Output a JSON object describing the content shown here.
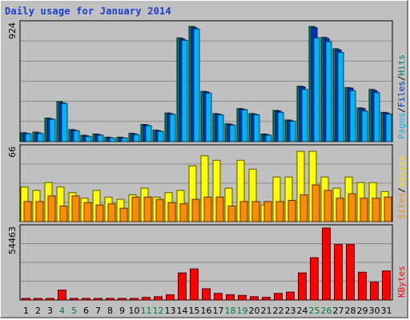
{
  "title": "Daily usage for January 2014",
  "panels": {
    "top": {
      "max_label": "924",
      "legend": [
        {
          "text": "Pages",
          "color": "#00b4ff"
        },
        {
          "text": "Files",
          "color": "#0030c0"
        },
        {
          "text": "Hits",
          "color": "#008060"
        }
      ]
    },
    "middle": {
      "max_label": "66",
      "legend": [
        {
          "text": "Sites",
          "color": "#ff8c00"
        },
        {
          "text": "Visits",
          "color": "#ffe000"
        }
      ]
    },
    "bottom": {
      "max_label": "54463",
      "legend": [
        {
          "text": "KBytes",
          "color": "#ff0000"
        }
      ]
    }
  },
  "colors": {
    "hits": "#008060",
    "files": "#0030c0",
    "pages": "#00b4ff",
    "visits": "#ffff00",
    "sites": "#ff8c00",
    "kbytes": "#ff0000",
    "weekday_label": "#000000",
    "weekend_label": "#007b39"
  },
  "chart_data": {
    "type": "bar",
    "categories": [
      "1",
      "2",
      "3",
      "4",
      "5",
      "6",
      "7",
      "8",
      "9",
      "10",
      "11",
      "12",
      "13",
      "14",
      "15",
      "16",
      "17",
      "18",
      "19",
      "20",
      "21",
      "22",
      "23",
      "24",
      "25",
      "26",
      "27",
      "28",
      "29",
      "30",
      "31"
    ],
    "weekend_days": [
      "4",
      "5",
      "11",
      "12",
      "18",
      "19",
      "25",
      "26"
    ],
    "panels": [
      {
        "name": "top",
        "ylim": [
          0,
          924
        ],
        "series": [
          {
            "name": "Hits",
            "values": [
              70,
              75,
              185,
              315,
              95,
              50,
              60,
              35,
              35,
              65,
              135,
              90,
              225,
              815,
              905,
              395,
              220,
              140,
              260,
              220,
              60,
              245,
              170,
              435,
              905,
              820,
              730,
              425,
              265,
              410,
              230
            ]
          },
          {
            "name": "Files",
            "values": [
              65,
              68,
              180,
              305,
              90,
              45,
              55,
              30,
              30,
              60,
              130,
              85,
              220,
              805,
              895,
              390,
              215,
              135,
              255,
              215,
              55,
              240,
              165,
              430,
              895,
              810,
              720,
              420,
              260,
              400,
              225
            ]
          },
          {
            "name": "Pages",
            "values": [
              62,
              64,
              175,
              300,
              85,
              40,
              50,
              28,
              28,
              55,
              125,
              80,
              215,
              795,
              885,
              380,
              210,
              130,
              250,
              210,
              50,
              230,
              160,
              410,
              815,
              785,
              700,
              400,
              240,
              385,
              215
            ]
          }
        ]
      },
      {
        "name": "middle",
        "ylim": [
          0,
          66
        ],
        "series": [
          {
            "name": "Visits",
            "values": [
              31,
              28,
              35,
              31,
              26,
              21,
              28,
              22,
              20,
              24,
              30,
              22,
              26,
              28,
              50,
              59,
              55,
              30,
              55,
              47,
              15,
              40,
              40,
              63,
              63,
              40,
              30,
              40,
              35,
              35,
              27
            ]
          },
          {
            "name": "Sites",
            "values": [
              18,
              18,
              23,
              14,
              23,
              17,
              15,
              16,
              12,
              22,
              22,
              20,
              17,
              16,
              20,
              22,
              22,
              14,
              18,
              18,
              18,
              18,
              19,
              24,
              33,
              28,
              21,
              25,
              21,
              21,
              22
            ]
          }
        ]
      },
      {
        "name": "bottom",
        "ylim": [
          0,
          54463
        ],
        "series": [
          {
            "name": "KBytes",
            "values": [
              1200,
              1200,
              1200,
              7500,
              500,
              500,
              500,
              500,
              500,
              1000,
              2000,
              2500,
              4000,
              20500,
              23500,
              8500,
              5000,
              4000,
              3500,
              2500,
              2000,
              5000,
              6000,
              20500,
              32000,
              54463,
              42000,
              42000,
              21000,
              13500,
              22000
            ]
          }
        ]
      }
    ]
  }
}
